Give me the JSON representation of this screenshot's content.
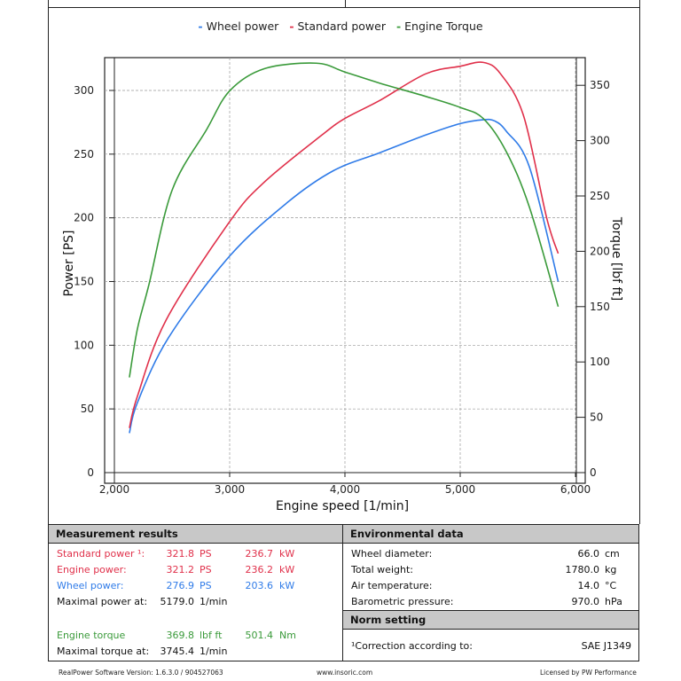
{
  "legend": {
    "wheel": "Wheel power",
    "standard": "Standard power",
    "torque": "Engine Torque"
  },
  "colors": {
    "wheel": "#2f7be8",
    "standard": "#e0304a",
    "torque": "#3a9a3a"
  },
  "chart_data": {
    "type": "line",
    "xlabel": "Engine speed [1/min]",
    "ylabel": "Power [PS]",
    "y2label": "Torque [lbf ft]",
    "xlim": [
      2000,
      6000
    ],
    "ylim": [
      0,
      325
    ],
    "y2lim": [
      0,
      380
    ],
    "xticks": [
      "2,000",
      "3,000",
      "4,000",
      "5,000",
      "6,000"
    ],
    "yticks": [
      "0",
      "50",
      "100",
      "150",
      "200",
      "250",
      "300"
    ],
    "y2ticks": [
      "0",
      "50",
      "100",
      "150",
      "200",
      "250",
      "300",
      "350"
    ],
    "grid": true,
    "legend_position": "top",
    "series": [
      {
        "name": "Wheel power",
        "axis": "left",
        "x": [
          2130,
          2200,
          2470,
          3000,
          3500,
          3900,
          4300,
          4700,
          5000,
          5200,
          5300,
          5400,
          5600,
          5850
        ],
        "y": [
          31,
          55,
          106,
          170,
          212,
          237,
          251,
          265,
          274,
          277,
          276,
          268,
          240,
          150
        ]
      },
      {
        "name": "Standard power",
        "axis": "left",
        "x": [
          2130,
          2200,
          2450,
          3000,
          3300,
          3800,
          4000,
          4300,
          4700,
          5000,
          5200,
          5350,
          5550,
          5750,
          5850
        ],
        "y": [
          35,
          60,
          120,
          197,
          228,
          265,
          278,
          292,
          313,
          319,
          322,
          313,
          280,
          200,
          172
        ]
      },
      {
        "name": "Engine Torque",
        "axis": "right",
        "x": [
          2130,
          2200,
          2300,
          2500,
          2800,
          3000,
          3300,
          3750,
          4000,
          4300,
          4700,
          5000,
          5200,
          5400,
          5600,
          5850
        ],
        "y": [
          86,
          130,
          170,
          255,
          310,
          345,
          365,
          370,
          362,
          352,
          340,
          330,
          320,
          290,
          240,
          150
        ]
      }
    ]
  },
  "measurement": {
    "title": "Measurement results",
    "rows": [
      {
        "label": "Standard power ¹:",
        "v1": "321.8",
        "u1": "PS",
        "v2": "236.7",
        "u2": "kW",
        "color": "#e0304a"
      },
      {
        "label": "Engine power:",
        "v1": "321.2",
        "u1": "PS",
        "v2": "236.2",
        "u2": "kW",
        "color": "#e0304a"
      },
      {
        "label": "Wheel power:",
        "v1": "276.9",
        "u1": "PS",
        "v2": "203.6",
        "u2": "kW",
        "color": "#2f7be8"
      },
      {
        "label": "Maximal power at:",
        "v1": "5179.0",
        "u1": "1/min",
        "v2": "",
        "u2": "",
        "color": "#111"
      },
      {
        "label": "Engine torque",
        "v1": "369.8",
        "u1": "lbf ft",
        "v2": "501.4",
        "u2": "Nm",
        "color": "#3a9a3a"
      },
      {
        "label": "Maximal torque at:",
        "v1": "3745.4",
        "u1": "1/min",
        "v2": "",
        "u2": "",
        "color": "#111"
      }
    ]
  },
  "environment": {
    "title": "Environmental data",
    "rows": [
      {
        "label": "Wheel diameter:",
        "value": "66.0",
        "unit": "cm"
      },
      {
        "label": "Total weight:",
        "value": "1780.0",
        "unit": "kg"
      },
      {
        "label": "Air temperature:",
        "value": "14.0",
        "unit": "°C"
      },
      {
        "label": "Barometric pressure:",
        "value": "970.0",
        "unit": "hPa"
      }
    ]
  },
  "norm": {
    "title": "Norm setting",
    "label": "¹Correction according to:",
    "value": "SAE J1349"
  },
  "footer": {
    "version": "RealPower Software Version: 1.6.3.0 / 904527063",
    "site": "www.insoric.com",
    "license": "Licensed by PW Performance"
  }
}
